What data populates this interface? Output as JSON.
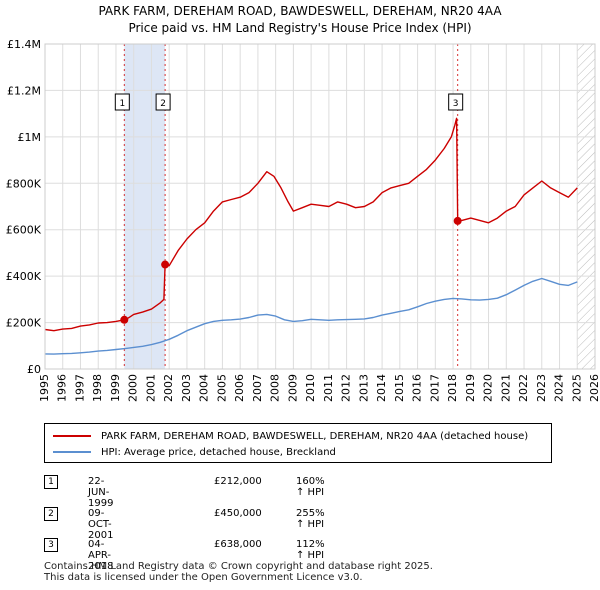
{
  "title_line1": "PARK FARM, DEREHAM ROAD, BAWDESWELL, DEREHAM, NR20 4AA",
  "title_line2": "Price paid vs. HM Land Registry's House Price Index (HPI)",
  "colors": {
    "property": "#cc0000",
    "hpi": "#5b8fd0",
    "shade": "#dde6f5",
    "grid": "#dddddd"
  },
  "chart_data": {
    "type": "line",
    "title": "PARK FARM, DEREHAM ROAD, BAWDESWELL, DEREHAM, NR20 4AA - Price paid vs. HM Land Registry's House Price Index (HPI)",
    "xlabel": "",
    "ylabel": "",
    "xlim": [
      1995,
      2026
    ],
    "ylim": [
      0,
      1400000
    ],
    "x_ticks": [
      "1995",
      "1996",
      "1997",
      "1998",
      "1999",
      "2000",
      "2001",
      "2002",
      "2003",
      "2004",
      "2005",
      "2006",
      "2007",
      "2008",
      "2009",
      "2010",
      "2011",
      "2012",
      "2013",
      "2014",
      "2015",
      "2016",
      "2017",
      "2018",
      "2019",
      "2020",
      "2021",
      "2022",
      "2023",
      "2024",
      "2025",
      "2026"
    ],
    "y_ticks": [
      {
        "value": 0,
        "label": "£0"
      },
      {
        "value": 200000,
        "label": "£200K"
      },
      {
        "value": 400000,
        "label": "£400K"
      },
      {
        "value": 600000,
        "label": "£600K"
      },
      {
        "value": 800000,
        "label": "£800K"
      },
      {
        "value": 1000000,
        "label": "£1M"
      },
      {
        "value": 1200000,
        "label": "£1.2M"
      },
      {
        "value": 1400000,
        "label": "£1.4M"
      }
    ],
    "shaded_spans": [
      [
        1999.47,
        2001.77
      ]
    ],
    "hatched_after": 2025.0,
    "series": [
      {
        "name": "PARK FARM, DEREHAM ROAD, BAWDESWELL, DEREHAM, NR20 4AA (detached house)",
        "color": "#cc0000",
        "x": [
          1995.0,
          1995.5,
          1996.0,
          1996.5,
          1997.0,
          1997.5,
          1998.0,
          1998.5,
          1999.0,
          1999.47,
          1999.7,
          2000.0,
          2000.5,
          2001.0,
          2001.5,
          2001.7,
          2001.77,
          2002.0,
          2002.5,
          2003.0,
          2003.5,
          2004.0,
          2004.5,
          2005.0,
          2005.5,
          2006.0,
          2006.5,
          2007.0,
          2007.5,
          2007.9,
          2008.3,
          2008.7,
          2009.0,
          2009.5,
          2010.0,
          2010.5,
          2011.0,
          2011.5,
          2012.0,
          2012.5,
          2013.0,
          2013.5,
          2014.0,
          2014.5,
          2015.0,
          2015.5,
          2016.0,
          2016.5,
          2017.0,
          2017.5,
          2017.9,
          2018.1,
          2018.2,
          2018.26,
          2018.5,
          2019.0,
          2019.5,
          2020.0,
          2020.5,
          2021.0,
          2021.5,
          2022.0,
          2022.5,
          2023.0,
          2023.5,
          2024.0,
          2024.5,
          2025.0
        ],
        "values": [
          170000,
          165000,
          172000,
          175000,
          185000,
          190000,
          198000,
          200000,
          205000,
          212000,
          220000,
          235000,
          245000,
          258000,
          285000,
          300000,
          450000,
          445000,
          510000,
          560000,
          600000,
          630000,
          680000,
          720000,
          730000,
          740000,
          760000,
          800000,
          850000,
          830000,
          780000,
          720000,
          680000,
          695000,
          710000,
          705000,
          700000,
          720000,
          710000,
          695000,
          700000,
          720000,
          760000,
          780000,
          790000,
          800000,
          830000,
          860000,
          900000,
          950000,
          1000000,
          1050000,
          1080000,
          638000,
          640000,
          650000,
          640000,
          630000,
          650000,
          680000,
          700000,
          750000,
          780000,
          810000,
          780000,
          760000,
          740000,
          780000
        ]
      },
      {
        "name": "HPI: Average price, detached house, Breckland",
        "color": "#5b8fd0",
        "x": [
          1995.0,
          1995.5,
          1996.0,
          1996.5,
          1997.0,
          1997.5,
          1998.0,
          1998.5,
          1999.0,
          1999.5,
          2000.0,
          2000.5,
          2001.0,
          2001.5,
          2002.0,
          2002.5,
          2003.0,
          2003.5,
          2004.0,
          2004.5,
          2005.0,
          2005.5,
          2006.0,
          2006.5,
          2007.0,
          2007.5,
          2008.0,
          2008.5,
          2009.0,
          2009.5,
          2010.0,
          2010.5,
          2011.0,
          2011.5,
          2012.0,
          2012.5,
          2013.0,
          2013.5,
          2014.0,
          2014.5,
          2015.0,
          2015.5,
          2016.0,
          2016.5,
          2017.0,
          2017.5,
          2018.0,
          2018.5,
          2019.0,
          2019.5,
          2020.0,
          2020.5,
          2021.0,
          2021.5,
          2022.0,
          2022.5,
          2023.0,
          2023.5,
          2024.0,
          2024.5,
          2025.0
        ],
        "values": [
          65000,
          64000,
          66000,
          67000,
          70000,
          73000,
          77000,
          80000,
          84000,
          88000,
          93000,
          98000,
          105000,
          115000,
          128000,
          145000,
          165000,
          180000,
          195000,
          205000,
          210000,
          212000,
          215000,
          222000,
          232000,
          235000,
          228000,
          212000,
          205000,
          208000,
          214000,
          212000,
          210000,
          212000,
          213000,
          214000,
          216000,
          222000,
          232000,
          240000,
          248000,
          255000,
          268000,
          282000,
          292000,
          300000,
          304000,
          302000,
          298000,
          297000,
          300000,
          305000,
          320000,
          340000,
          360000,
          378000,
          390000,
          378000,
          365000,
          360000,
          375000
        ]
      }
    ],
    "sales": [
      {
        "label": "1",
        "x": 1999.47,
        "value": 212000
      },
      {
        "label": "2",
        "x": 2001.77,
        "value": 450000
      },
      {
        "label": "3",
        "x": 2018.26,
        "value": 638000
      }
    ]
  },
  "legend": {
    "property_label": "PARK FARM, DEREHAM ROAD, BAWDESWELL, DEREHAM, NR20 4AA (detached house)",
    "hpi_label": "HPI: Average price, detached house, Breckland"
  },
  "sales_table": [
    {
      "num": "1",
      "date": "22-JUN-1999",
      "price": "£212,000",
      "hpi": "160% ↑ HPI"
    },
    {
      "num": "2",
      "date": "09-OCT-2001",
      "price": "£450,000",
      "hpi": "255% ↑ HPI"
    },
    {
      "num": "3",
      "date": "04-APR-2018",
      "price": "£638,000",
      "hpi": "112% ↑ HPI"
    }
  ],
  "footer": {
    "line1": "Contains HM Land Registry data © Crown copyright and database right 2025.",
    "line2": "This data is licensed under the Open Government Licence v3.0."
  }
}
